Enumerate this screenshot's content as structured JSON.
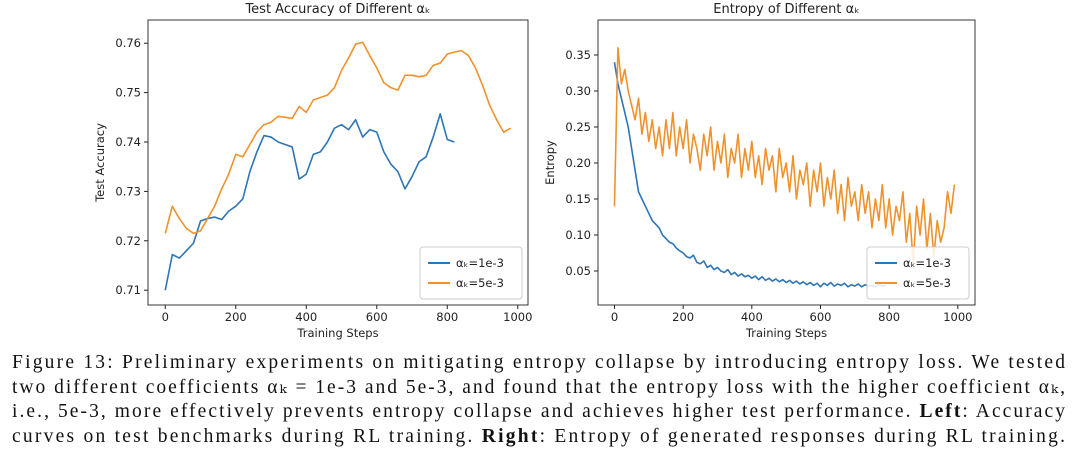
{
  "chart_data": [
    {
      "type": "line",
      "title": "Test Accuracy of Different αₖ",
      "xlabel": "Training Steps",
      "ylabel": "Test Accuracy",
      "x": [
        0,
        20,
        40,
        60,
        80,
        100,
        120,
        140,
        160,
        180,
        200,
        220,
        240,
        260,
        280,
        300,
        320,
        340,
        360,
        380,
        400,
        420,
        440,
        460,
        480,
        500,
        520,
        540,
        560,
        580,
        600,
        620,
        640,
        660,
        680,
        700,
        720,
        740,
        760,
        780,
        800,
        820,
        840,
        860,
        880,
        900,
        920,
        940,
        960,
        980
      ],
      "series": [
        {
          "name": "αₖ=1e-3",
          "color": "#2e75b6",
          "values": [
            0.71,
            0.7172,
            0.7165,
            0.718,
            0.7195,
            0.724,
            0.7245,
            0.7248,
            0.7243,
            0.726,
            0.727,
            0.7285,
            0.734,
            0.738,
            0.7413,
            0.741,
            0.74,
            0.7395,
            0.739,
            0.7325,
            0.7335,
            0.7375,
            0.738,
            0.74,
            0.7428,
            0.7435,
            0.7425,
            0.7445,
            0.741,
            0.7425,
            0.742,
            0.738,
            0.7355,
            0.734,
            0.7305,
            0.733,
            0.736,
            0.737,
            0.741,
            0.7457,
            0.7405,
            0.74,
            null,
            null,
            null,
            null,
            null,
            null,
            null,
            null
          ]
        },
        {
          "name": "αₖ=5e-3",
          "color": "#f0922b",
          "values": [
            0.7215,
            0.727,
            0.7245,
            0.7225,
            0.7215,
            0.722,
            0.7245,
            0.727,
            0.7305,
            0.7335,
            0.7375,
            0.737,
            0.7395,
            0.742,
            0.7435,
            0.744,
            0.7452,
            0.745,
            0.7448,
            0.7472,
            0.746,
            0.7485,
            0.749,
            0.7495,
            0.751,
            0.7545,
            0.757,
            0.7598,
            0.7602,
            0.7575,
            0.755,
            0.752,
            0.751,
            0.7505,
            0.7535,
            0.7535,
            0.7532,
            0.7535,
            0.7555,
            0.756,
            0.7578,
            0.7582,
            0.7585,
            0.7575,
            0.755,
            0.7515,
            0.7475,
            0.7445,
            0.742,
            0.7428
          ]
        }
      ],
      "xlim": [
        -49,
        1029
      ],
      "ylim": [
        0.707,
        0.7647
      ],
      "xticks": [
        0,
        200,
        400,
        600,
        800,
        1000
      ],
      "yticks": [
        0.71,
        0.72,
        0.73,
        0.74,
        0.75,
        0.76
      ],
      "legend": "lower right"
    },
    {
      "type": "line",
      "title": "Entropy of Different αₖ",
      "xlabel": "Training Steps",
      "ylabel": "Entropy",
      "x": [
        0,
        10,
        20,
        30,
        40,
        50,
        60,
        70,
        80,
        90,
        100,
        110,
        120,
        130,
        140,
        150,
        160,
        170,
        180,
        190,
        200,
        210,
        220,
        230,
        240,
        250,
        260,
        270,
        280,
        290,
        300,
        310,
        320,
        330,
        340,
        350,
        360,
        370,
        380,
        390,
        400,
        410,
        420,
        430,
        440,
        450,
        460,
        470,
        480,
        490,
        500,
        510,
        520,
        530,
        540,
        550,
        560,
        570,
        580,
        590,
        600,
        610,
        620,
        630,
        640,
        650,
        660,
        670,
        680,
        690,
        700,
        710,
        720,
        730,
        740,
        750,
        760,
        770,
        780,
        790,
        800,
        810,
        820,
        830,
        840,
        850,
        860,
        870,
        880,
        890,
        900,
        910,
        920,
        930,
        940,
        950,
        960,
        970,
        980,
        990
      ],
      "series": [
        {
          "name": "αₖ=1e-3",
          "color": "#2e75b6",
          "values": [
            0.34,
            0.31,
            0.29,
            0.27,
            0.25,
            0.22,
            0.19,
            0.16,
            0.15,
            0.14,
            0.13,
            0.12,
            0.115,
            0.11,
            0.1,
            0.095,
            0.09,
            0.088,
            0.082,
            0.078,
            0.075,
            0.07,
            0.068,
            0.072,
            0.062,
            0.06,
            0.064,
            0.055,
            0.058,
            0.052,
            0.055,
            0.05,
            0.048,
            0.052,
            0.045,
            0.048,
            0.043,
            0.046,
            0.042,
            0.044,
            0.04,
            0.043,
            0.038,
            0.042,
            0.037,
            0.04,
            0.036,
            0.039,
            0.035,
            0.038,
            0.034,
            0.037,
            0.033,
            0.036,
            0.032,
            0.035,
            0.031,
            0.034,
            0.03,
            0.033,
            0.028,
            0.033,
            0.03,
            0.034,
            0.029,
            0.032,
            0.03,
            0.033,
            0.028,
            0.031,
            0.029,
            0.032,
            0.028,
            0.031,
            0.029,
            0.03,
            0.028,
            0.031,
            0.029,
            0.03,
            null,
            null,
            null,
            null,
            null,
            null,
            null,
            null,
            null,
            null,
            null,
            null,
            null,
            null,
            null,
            null,
            null,
            null,
            null,
            null
          ]
        },
        {
          "name": "αₖ=5e-3",
          "color": "#f0922b",
          "values": [
            0.14,
            0.36,
            0.31,
            0.33,
            0.3,
            0.28,
            0.26,
            0.29,
            0.24,
            0.27,
            0.23,
            0.26,
            0.22,
            0.25,
            0.21,
            0.26,
            0.22,
            0.27,
            0.21,
            0.25,
            0.22,
            0.26,
            0.2,
            0.24,
            0.22,
            0.19,
            0.24,
            0.21,
            0.25,
            0.19,
            0.23,
            0.2,
            0.24,
            0.18,
            0.22,
            0.2,
            0.24,
            0.18,
            0.22,
            0.19,
            0.23,
            0.18,
            0.21,
            0.17,
            0.22,
            0.19,
            0.21,
            0.16,
            0.22,
            0.18,
            0.2,
            0.16,
            0.21,
            0.15,
            0.19,
            0.17,
            0.2,
            0.14,
            0.19,
            0.16,
            0.2,
            0.14,
            0.18,
            0.15,
            0.19,
            0.13,
            0.17,
            0.12,
            0.18,
            0.14,
            0.16,
            0.12,
            0.17,
            0.13,
            0.16,
            0.11,
            0.15,
            0.12,
            0.17,
            0.11,
            0.15,
            0.1,
            0.14,
            0.12,
            0.16,
            0.09,
            0.13,
            0.06,
            0.14,
            0.1,
            0.15,
            0.08,
            0.13,
            0.07,
            0.12,
            0.09,
            0.11,
            0.16,
            0.13,
            0.17
          ]
        }
      ],
      "xlim": [
        -48,
        1050
      ],
      "ylim": [
        0.0028,
        0.3986
      ],
      "xticks": [
        0,
        200,
        400,
        600,
        800,
        1000
      ],
      "yticks": [
        0.05,
        {
          "value": 0.1,
          "label": "0.10"
        },
        0.15,
        {
          "value": 0.2,
          "label": "0.20"
        },
        0.25,
        {
          "value": 0.3,
          "label": "0.30"
        },
        0.35
      ],
      "legend": "lower right"
    }
  ],
  "caption": {
    "lines": [
      [
        {
          "text": "Figure 13: Preliminary experiments on mitigating entropy collapse by introducing entropy loss. We tested",
          "bold": false
        }
      ],
      [
        {
          "text": "two different coefficients αₖ = 1e-3 and 5e-3, and found that the entropy loss with the higher coefficient αₖ,",
          "bold": false
        }
      ],
      [
        {
          "text": "i.e., 5e-3, more effectively prevents entropy collapse and achieves higher test performance. ",
          "bold": false
        },
        {
          "text": "Left",
          "bold": true
        },
        {
          "text": ": Accuracy",
          "bold": false
        }
      ],
      [
        {
          "text": "curves on test benchmarks during RL training. ",
          "bold": false
        },
        {
          "text": "Right",
          "bold": true
        },
        {
          "text": ": Entropy of generated responses during RL training.",
          "bold": false
        }
      ]
    ]
  }
}
